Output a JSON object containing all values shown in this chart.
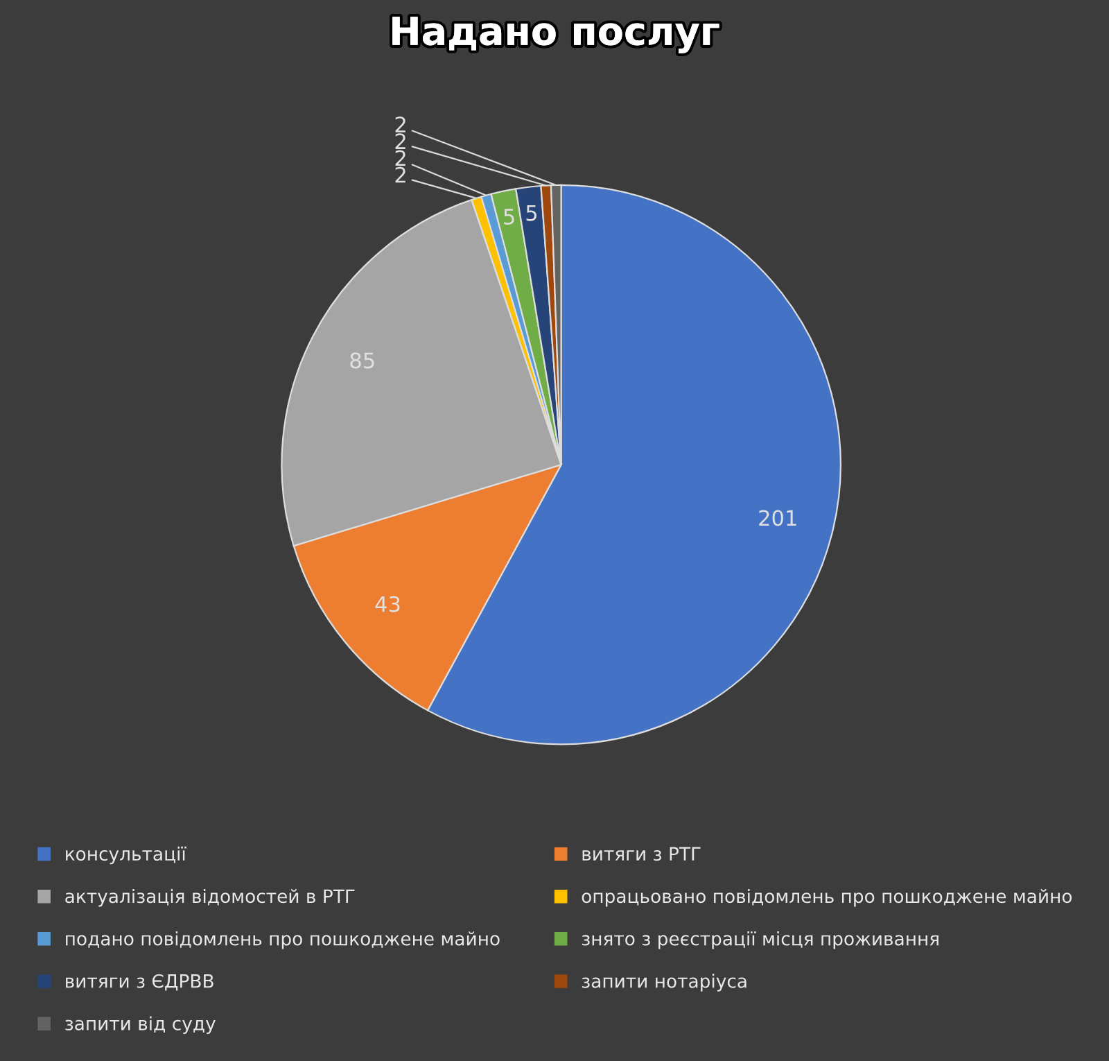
{
  "chart_data": {
    "type": "pie",
    "title": "Надано послуг",
    "categories": [
      "консультації",
      "витяги з РТГ",
      "актуалізація відомостей в РТГ",
      "опрацьовано повідомлень про пошкоджене майно",
      "подано повідомлень про пошкоджене майно",
      "знято з реєстрації місця проживання",
      "витяги з ЄДРВВ",
      "запити нотаріуса",
      "запити від суду"
    ],
    "values": [
      201,
      43,
      85,
      2,
      2,
      5,
      5,
      2,
      2
    ],
    "colors": [
      "#4472c4",
      "#ed7d31",
      "#a5a5a5",
      "#ffc000",
      "#5b9bd5",
      "#70ad47",
      "#264478",
      "#9e480e",
      "#636363"
    ],
    "data_labels": true,
    "legend": "bottom"
  }
}
